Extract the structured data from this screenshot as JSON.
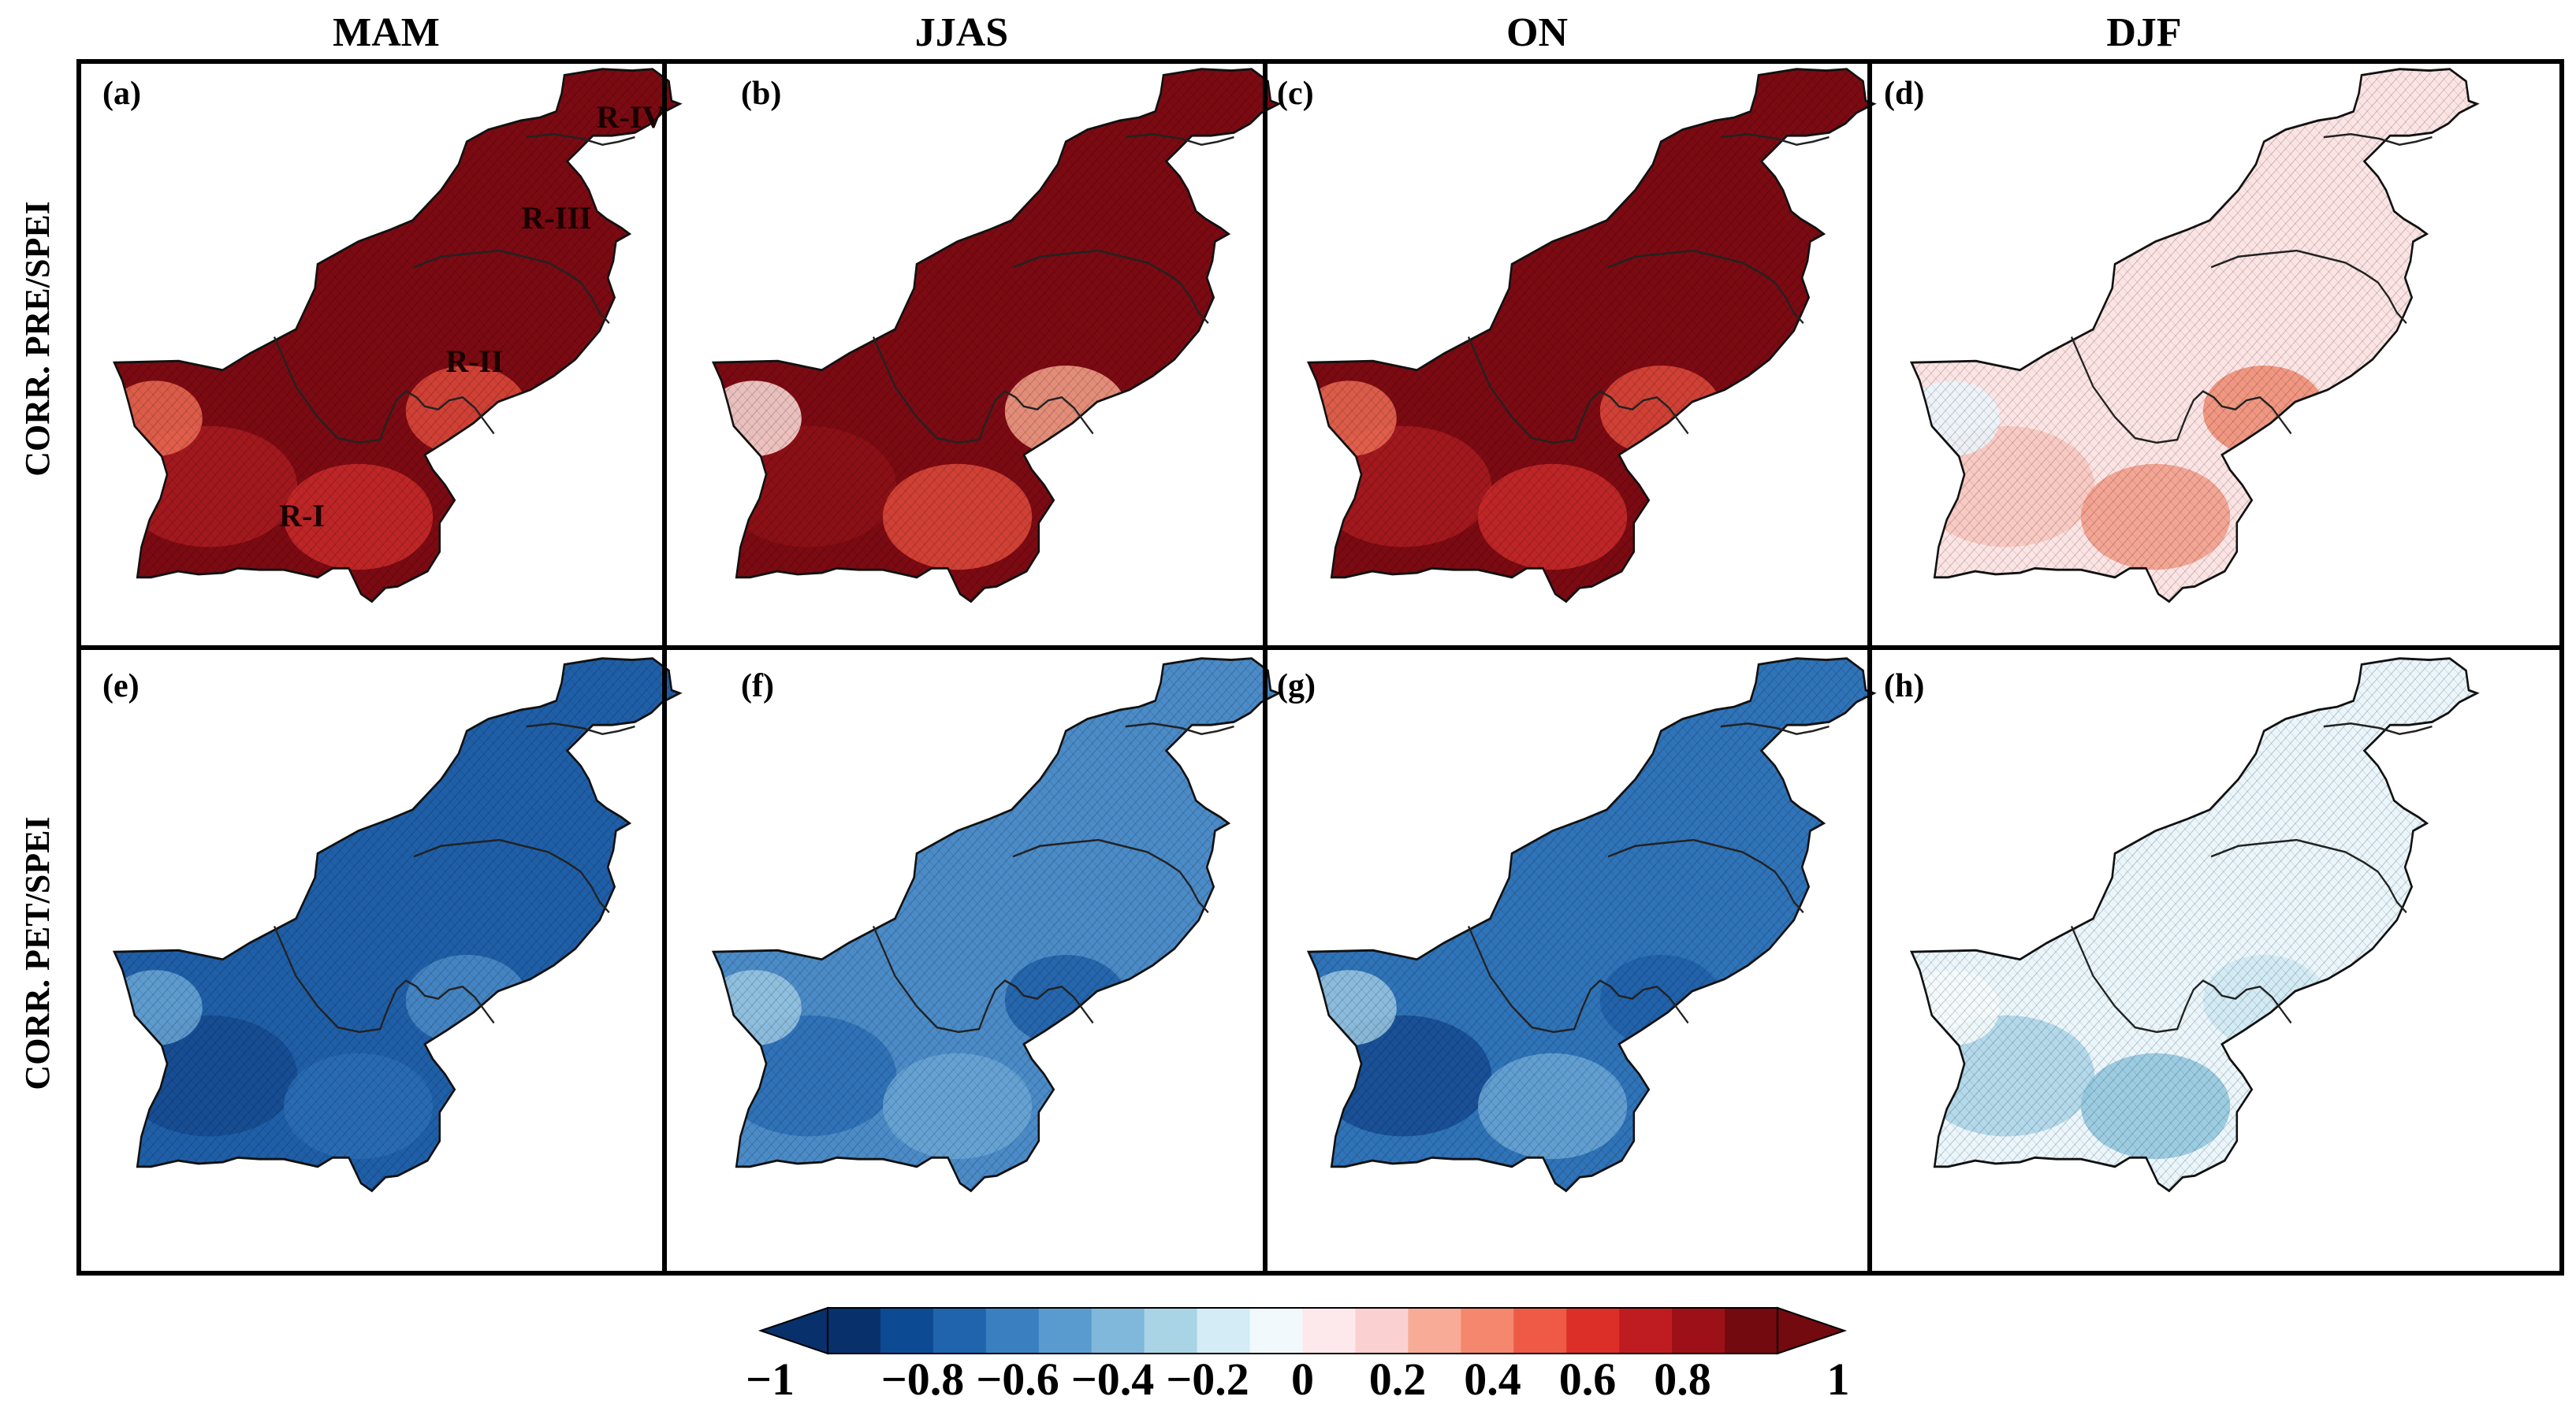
{
  "figure": {
    "column_titles": [
      "MAM",
      "JJAS",
      "ON",
      "DJF"
    ],
    "row_labels": [
      "CORR. PRE/SPEI",
      "CORR. PET/SPEI"
    ],
    "region_labels": [
      "R-IV",
      "R-III",
      "R-II",
      "R-I"
    ],
    "panels": [
      {
        "label": "(a)",
        "season": "MAM",
        "variable": "PRE",
        "base": "#7c0a12",
        "spots": [
          "#a81b20",
          "#c92a2a",
          "#df4a3c",
          "#ec6b53"
        ],
        "hatch": true
      },
      {
        "label": "(b)",
        "season": "JJAS",
        "variable": "PRE",
        "base": "#7c0a12",
        "spots": [
          "#8e1216",
          "#df4a3c",
          "#f6a58c",
          "#fde0dc"
        ],
        "hatch": true
      },
      {
        "label": "(c)",
        "season": "ON",
        "variable": "PRE",
        "base": "#7c0a12",
        "spots": [
          "#a81b20",
          "#c92a2a",
          "#df4a3c",
          "#ec6b53"
        ],
        "hatch": true
      },
      {
        "label": "(d)",
        "season": "DJF",
        "variable": "PRE",
        "base": "#fde4e4",
        "spots": [
          "#f8c5bd",
          "#f29a86",
          "#ef8a70",
          "#eaf6fb"
        ],
        "hatch": true
      },
      {
        "label": "(e)",
        "season": "MAM",
        "variable": "PET",
        "base": "#1f5fa8",
        "spots": [
          "#154a8f",
          "#2a6db5",
          "#4b8bc7",
          "#6aa6d5"
        ],
        "hatch": true
      },
      {
        "label": "(f)",
        "season": "JJAS",
        "variable": "PET",
        "base": "#4b8bc7",
        "spots": [
          "#2a6db5",
          "#6aa6d5",
          "#1f5fa8",
          "#9bc8e2"
        ],
        "hatch": true
      },
      {
        "label": "(g)",
        "season": "ON",
        "variable": "PET",
        "base": "#2f73b8",
        "spots": [
          "#154a8f",
          "#6aa6d5",
          "#1f5fa8",
          "#9bc8e2"
        ],
        "hatch": true
      },
      {
        "label": "(h)",
        "season": "DJF",
        "variable": "PET",
        "base": "#eaf6fb",
        "spots": [
          "#a9d4e6",
          "#8ec4dc",
          "#cfe9f3",
          "#f7fbfd"
        ],
        "hatch": true
      }
    ]
  },
  "colorbar": {
    "tick_labels": [
      "−1",
      "−0.8",
      "−0.6",
      "−0.4",
      "−0.2",
      "0",
      "0.2",
      "0.4",
      "0.6",
      "0.8",
      "1"
    ],
    "tick_values": [
      -1,
      -0.8,
      -0.6,
      -0.4,
      -0.2,
      0,
      0.2,
      0.4,
      0.6,
      0.8,
      1
    ],
    "range": [
      -1,
      1
    ],
    "segment_colors": [
      "#08306b",
      "#0d4a94",
      "#1f64ad",
      "#3a80c0",
      "#5a9bcf",
      "#7fb8da",
      "#a9d4e6",
      "#d3ecf5",
      "#f1f9fc",
      "#fde8ec",
      "#fbd0d0",
      "#f8ab96",
      "#f4876d",
      "#ee5a45",
      "#db2f28",
      "#bf1c22",
      "#9e1017",
      "#730a0f"
    ]
  },
  "colors": {
    "border": "#000000",
    "boundary": "#222222",
    "sea": "#ffffff"
  }
}
